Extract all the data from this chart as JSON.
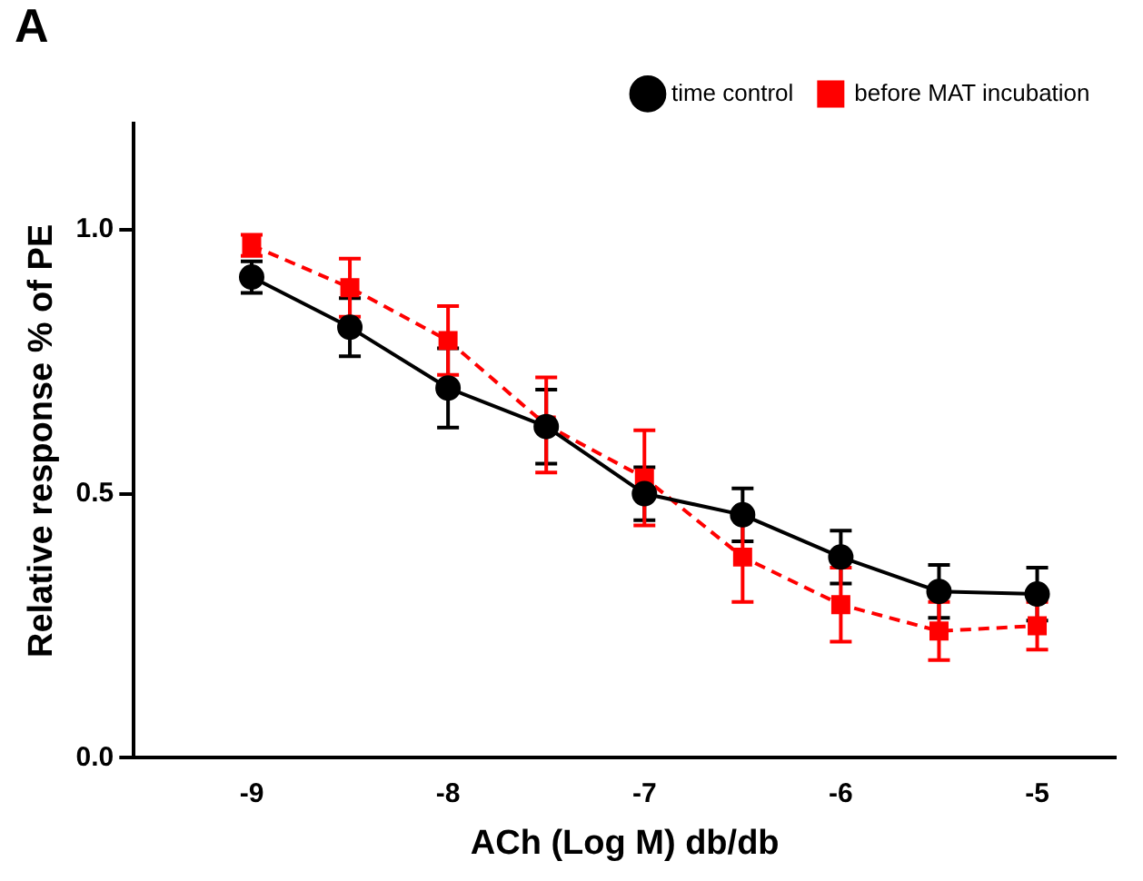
{
  "chart_data": {
    "type": "line",
    "title": "A",
    "xlabel": "ACh (Log M) db/db",
    "ylabel": "Relative response % of PE",
    "x": [
      -9,
      -8.5,
      -8,
      -7.5,
      -7,
      -6.5,
      -6,
      -5.5,
      -5
    ],
    "xlim": [
      -9.6,
      -4.6
    ],
    "xticks": [
      -9,
      -8,
      -7,
      -6,
      -5
    ],
    "ylim": [
      0,
      1.2
    ],
    "yticks": [
      {
        "value": 0,
        "label": "0.0"
      },
      {
        "value": 0.5,
        "label": "0.5"
      },
      {
        "value": 1,
        "label": "1.0"
      }
    ],
    "grid": false,
    "legend": "top right",
    "series": [
      {
        "name": "time control",
        "color": "#000000",
        "marker": "circle",
        "line_style": "solid",
        "values": [
          0.91,
          0.815,
          0.7,
          0.627,
          0.5,
          0.46,
          0.38,
          0.315,
          0.31
        ],
        "errors": [
          0.03,
          0.055,
          0.075,
          0.07,
          0.05,
          0.05,
          0.05,
          0.05,
          0.05
        ]
      },
      {
        "name": "before MAT incubation",
        "color": "#ff0000",
        "marker": "square",
        "line_style": "dashed",
        "values": [
          0.97,
          0.89,
          0.79,
          0.63,
          0.53,
          0.38,
          0.29,
          0.24,
          0.25
        ],
        "errors": [
          0.02,
          0.055,
          0.065,
          0.09,
          0.09,
          0.085,
          0.07,
          0.055,
          0.045
        ]
      }
    ]
  }
}
